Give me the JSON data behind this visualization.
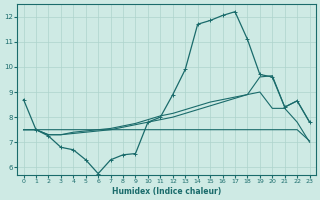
{
  "xlabel": "Humidex (Indice chaleur)",
  "bg_color": "#ceeae4",
  "line_color": "#1a6b6b",
  "grid_color": "#aed4cc",
  "xlim": [
    -0.5,
    23.5
  ],
  "ylim": [
    5.7,
    12.5
  ],
  "xticks": [
    0,
    1,
    2,
    3,
    4,
    5,
    6,
    7,
    8,
    9,
    10,
    11,
    12,
    13,
    14,
    15,
    16,
    17,
    18,
    19,
    20,
    21,
    22,
    23
  ],
  "yticks": [
    6,
    7,
    8,
    9,
    10,
    11,
    12
  ],
  "line1_marked": {
    "x": [
      0,
      1,
      2,
      3,
      4,
      5,
      6,
      7,
      8,
      9,
      10,
      11,
      12,
      13,
      14,
      15,
      16,
      17,
      18,
      19,
      20,
      21,
      22,
      23
    ],
    "y": [
      8.7,
      7.5,
      7.25,
      6.8,
      6.7,
      6.3,
      5.75,
      6.3,
      6.5,
      6.55,
      7.8,
      8.0,
      8.9,
      9.9,
      11.7,
      11.85,
      12.05,
      12.2,
      11.1,
      9.7,
      9.6,
      8.4,
      8.65,
      7.8
    ]
  },
  "line2_flat": {
    "x": [
      0,
      1,
      2,
      3,
      4,
      5,
      6,
      7,
      8,
      9,
      10,
      11,
      12,
      13,
      14,
      15,
      16,
      17,
      18,
      19,
      20,
      21,
      22,
      23
    ],
    "y": [
      7.5,
      7.5,
      7.5,
      7.5,
      7.5,
      7.5,
      7.5,
      7.5,
      7.5,
      7.5,
      7.5,
      7.5,
      7.5,
      7.5,
      7.5,
      7.5,
      7.5,
      7.5,
      7.5,
      7.5,
      7.5,
      7.5,
      7.5,
      7.05
    ]
  },
  "line3_rise": {
    "x": [
      0,
      1,
      2,
      3,
      4,
      5,
      6,
      7,
      8,
      9,
      10,
      11,
      12,
      13,
      14,
      15,
      16,
      17,
      18,
      19,
      20,
      21,
      22,
      23
    ],
    "y": [
      7.5,
      7.5,
      7.3,
      7.3,
      7.35,
      7.4,
      7.45,
      7.5,
      7.6,
      7.7,
      7.8,
      7.9,
      8.0,
      8.15,
      8.3,
      8.45,
      8.6,
      8.75,
      8.9,
      9.0,
      8.35,
      8.35,
      7.8,
      7.0
    ]
  },
  "line4_rise2": {
    "x": [
      0,
      1,
      2,
      3,
      4,
      5,
      6,
      7,
      8,
      9,
      10,
      11,
      12,
      13,
      14,
      15,
      16,
      17,
      18,
      19,
      20,
      21,
      22,
      23
    ],
    "y": [
      7.5,
      7.5,
      7.3,
      7.3,
      7.4,
      7.45,
      7.5,
      7.55,
      7.65,
      7.75,
      7.9,
      8.05,
      8.15,
      8.3,
      8.45,
      8.6,
      8.7,
      8.8,
      8.9,
      9.6,
      9.65,
      8.4,
      8.65,
      7.8
    ]
  }
}
